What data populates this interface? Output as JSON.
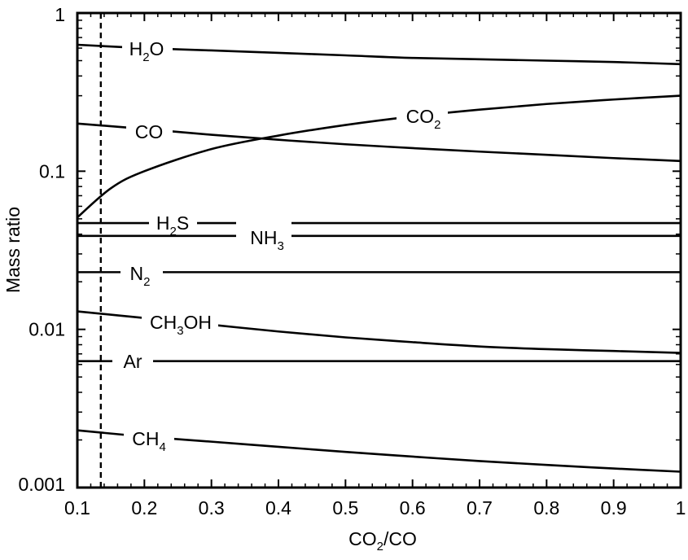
{
  "chart_data": {
    "type": "line",
    "x_scale": "linear",
    "y_scale": "log",
    "xlim": [
      0.1,
      1
    ],
    "ylim": [
      0.001,
      1
    ],
    "x_ticks": [
      0.1,
      0.2,
      0.3,
      0.4,
      0.5,
      0.6,
      0.7,
      0.8,
      0.9,
      1
    ],
    "x_tick_labels": [
      "0.1",
      "0.2",
      "0.3",
      "0.4",
      "0.5",
      "0.6",
      "0.7",
      "0.8",
      "0.9",
      "1"
    ],
    "y_ticks": [
      0.001,
      0.01,
      0.1,
      1
    ],
    "y_tick_labels": [
      "0.001",
      "0.01",
      "0.1",
      "1"
    ],
    "xlabel": {
      "main": "CO",
      "sub": "2",
      "rest": "/CO"
    },
    "ylabel": "Mass ratio",
    "grid": false,
    "legend": "none (inline labels)",
    "reference_line": {
      "x": 0.135,
      "style": "dashed"
    },
    "series": [
      {
        "name": "H2O",
        "label": {
          "pre": "H",
          "sub": "2",
          "post": "O"
        },
        "x": [
          0.1,
          0.2,
          0.3,
          0.4,
          0.5,
          0.6,
          0.7,
          0.8,
          0.9,
          1.0
        ],
        "y": [
          0.63,
          0.6,
          0.58,
          0.56,
          0.54,
          0.52,
          0.51,
          0.5,
          0.49,
          0.475
        ]
      },
      {
        "name": "CO",
        "label": {
          "pre": "CO",
          "sub": "",
          "post": ""
        },
        "x": [
          0.1,
          0.2,
          0.3,
          0.4,
          0.5,
          0.6,
          0.7,
          0.8,
          0.9,
          1.0
        ],
        "y": [
          0.2,
          0.185,
          0.17,
          0.158,
          0.148,
          0.14,
          0.133,
          0.127,
          0.121,
          0.116
        ]
      },
      {
        "name": "CO2",
        "label": {
          "pre": "CO",
          "sub": "2",
          "post": ""
        },
        "x": [
          0.1,
          0.15,
          0.2,
          0.3,
          0.4,
          0.5,
          0.6,
          0.7,
          0.8,
          0.9,
          1.0
        ],
        "y": [
          0.051,
          0.078,
          0.1,
          0.138,
          0.168,
          0.196,
          0.222,
          0.245,
          0.266,
          0.284,
          0.3
        ]
      },
      {
        "name": "H2S",
        "label": {
          "pre": "H",
          "sub": "2",
          "post": "S"
        },
        "x": [
          0.1,
          1.0
        ],
        "y": [
          0.047,
          0.047
        ]
      },
      {
        "name": "NH3",
        "label": {
          "pre": "NH",
          "sub": "3",
          "post": ""
        },
        "x": [
          0.1,
          1.0
        ],
        "y": [
          0.039,
          0.039
        ]
      },
      {
        "name": "N2",
        "label": {
          "pre": "N",
          "sub": "2",
          "post": ""
        },
        "x": [
          0.1,
          1.0
        ],
        "y": [
          0.023,
          0.023
        ]
      },
      {
        "name": "CH3OH",
        "label": {
          "pre": "CH",
          "sub": "3",
          "post": "OH"
        },
        "x": [
          0.1,
          0.2,
          0.3,
          0.4,
          0.5,
          0.6,
          0.7,
          0.8,
          0.9,
          1.0
        ],
        "y": [
          0.013,
          0.0118,
          0.0107,
          0.0097,
          0.0089,
          0.0083,
          0.0078,
          0.0075,
          0.0073,
          0.0071
        ]
      },
      {
        "name": "Ar",
        "label": {
          "pre": "Ar",
          "sub": "",
          "post": ""
        },
        "x": [
          0.1,
          1.0
        ],
        "y": [
          0.0063,
          0.0063
        ]
      },
      {
        "name": "CH4",
        "label": {
          "pre": "CH",
          "sub": "4",
          "post": ""
        },
        "x": [
          0.1,
          0.2,
          0.3,
          0.4,
          0.5,
          0.6,
          0.7,
          0.8,
          0.9,
          1.0
        ],
        "y": [
          0.0023,
          0.0021,
          0.00195,
          0.00181,
          0.00168,
          0.00157,
          0.00147,
          0.00139,
          0.00132,
          0.00126
        ]
      }
    ]
  }
}
